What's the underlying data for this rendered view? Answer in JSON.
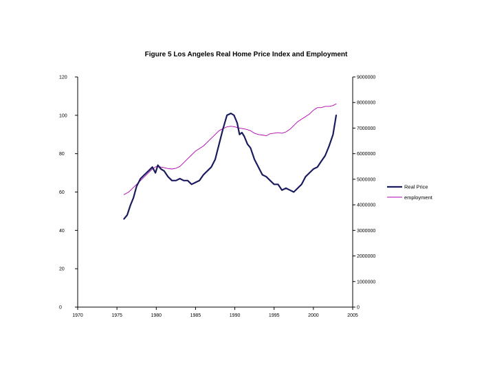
{
  "chart_data": {
    "type": "line",
    "title": "Figure 5 Los Angeles Real Home Price Index and Employment",
    "xlabel": "",
    "ylabel": "",
    "xlim": [
      1970,
      2005
    ],
    "ylim": [
      0,
      120
    ],
    "y2lim": [
      0,
      9000000
    ],
    "x_ticks": [
      "1970",
      "1975",
      "1980",
      "1985",
      "1990",
      "1995",
      "2000",
      "2005"
    ],
    "y_ticks": [
      "0",
      "20",
      "40",
      "60",
      "80",
      "100",
      "120"
    ],
    "y2_ticks": [
      "0",
      "1000000",
      "2000000",
      "3000000",
      "4000000",
      "5000000",
      "6000000",
      "7000000",
      "8000000",
      "9000000"
    ],
    "grid": false,
    "legend_position": "right",
    "series": [
      {
        "name": "Real Price",
        "axis": "left",
        "color": "#1a1a5e",
        "x": [
          1975.9,
          1976.3,
          1976.7,
          1977.1,
          1977.5,
          1978.0,
          1978.5,
          1979.0,
          1979.5,
          1979.9,
          1980.2,
          1980.6,
          1981.0,
          1981.5,
          1982.0,
          1982.5,
          1983.0,
          1983.5,
          1984.0,
          1984.5,
          1985.0,
          1985.5,
          1986.0,
          1986.5,
          1987.0,
          1987.5,
          1988.0,
          1988.5,
          1989.0,
          1989.5,
          1989.9,
          1990.3,
          1990.6,
          1990.9,
          1991.2,
          1991.6,
          1992.0,
          1992.5,
          1993.0,
          1993.5,
          1994.0,
          1994.5,
          1995.0,
          1995.5,
          1996.0,
          1996.5,
          1997.0,
          1997.5,
          1998.0,
          1998.5,
          1999.0,
          1999.5,
          2000.0,
          2000.5,
          2001.0,
          2001.5,
          2002.0,
          2002.5,
          2002.9
        ],
        "values": [
          46,
          48,
          53,
          57,
          63,
          67,
          69,
          71,
          73,
          70,
          74,
          72,
          71,
          68,
          66,
          66,
          67,
          66,
          66,
          64,
          65,
          66,
          69,
          71,
          73,
          77,
          85,
          93,
          100,
          101,
          100,
          96,
          90,
          91,
          89,
          85,
          83,
          77,
          73,
          69,
          68,
          66,
          64,
          64,
          61,
          62,
          61,
          60,
          62,
          64,
          68,
          70,
          72,
          73,
          76,
          79,
          84,
          90,
          100
        ]
      },
      {
        "name": "employment",
        "axis": "right",
        "color": "#b000b0",
        "x": [
          1975.9,
          1976.5,
          1977.0,
          1977.5,
          1978.0,
          1978.5,
          1979.0,
          1979.5,
          1980.0,
          1980.5,
          1981.0,
          1981.5,
          1982.0,
          1982.5,
          1983.0,
          1983.5,
          1984.0,
          1984.5,
          1985.0,
          1985.5,
          1986.0,
          1986.5,
          1987.0,
          1987.5,
          1988.0,
          1988.5,
          1989.0,
          1989.5,
          1990.0,
          1990.5,
          1991.0,
          1991.5,
          1992.0,
          1992.5,
          1993.0,
          1993.5,
          1994.0,
          1994.5,
          1995.0,
          1995.5,
          1996.0,
          1996.5,
          1997.0,
          1997.5,
          1998.0,
          1998.5,
          1999.0,
          1999.5,
          2000.0,
          2000.5,
          2001.0,
          2001.5,
          2002.0,
          2002.5,
          2002.9
        ],
        "values": [
          4400000,
          4500000,
          4650000,
          4800000,
          4950000,
          5100000,
          5250000,
          5400000,
          5500000,
          5480000,
          5450000,
          5420000,
          5400000,
          5430000,
          5500000,
          5650000,
          5800000,
          5950000,
          6100000,
          6200000,
          6300000,
          6450000,
          6600000,
          6750000,
          6900000,
          6980000,
          7050000,
          7070000,
          7050000,
          7000000,
          6980000,
          6950000,
          6900000,
          6800000,
          6750000,
          6730000,
          6700000,
          6780000,
          6800000,
          6820000,
          6800000,
          6850000,
          6950000,
          7100000,
          7250000,
          7350000,
          7450000,
          7550000,
          7700000,
          7800000,
          7800000,
          7850000,
          7850000,
          7880000,
          7950000
        ]
      }
    ]
  }
}
